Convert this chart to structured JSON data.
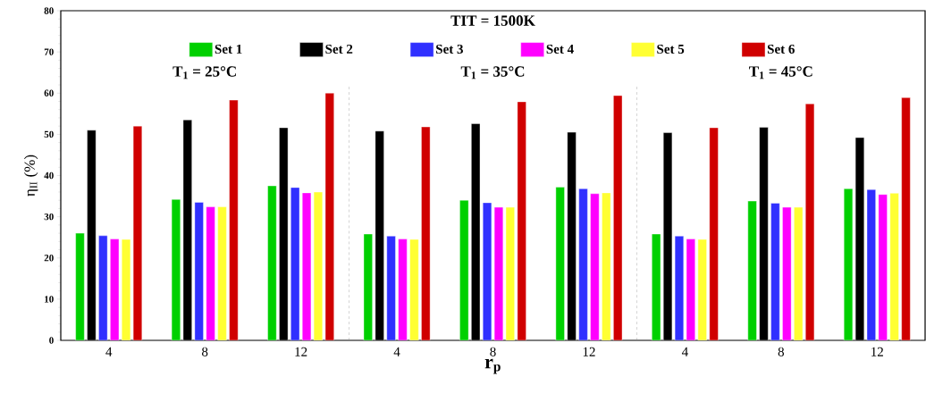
{
  "chart_data": {
    "type": "bar",
    "categories": [
      "4",
      "8",
      "12",
      "4",
      "8",
      "12",
      "4",
      "8",
      "12"
    ],
    "series": [
      {
        "name": "Set 1",
        "color": "#00d000",
        "values": [
          26,
          34.2,
          37.5,
          25.8,
          34,
          37.2,
          25.8,
          33.8,
          36.8
        ]
      },
      {
        "name": "Set 2",
        "color": "#000000",
        "values": [
          51,
          53.5,
          51.6,
          50.8,
          52.6,
          50.5,
          50.4,
          51.7,
          49.2
        ]
      },
      {
        "name": "Set 3",
        "color": "#3030ff",
        "values": [
          25.4,
          33.5,
          37.1,
          25.3,
          33.4,
          36.8,
          25.3,
          33.3,
          36.6
        ]
      },
      {
        "name": "Set 4",
        "color": "#ff00ff",
        "values": [
          24.6,
          32.4,
          35.8,
          24.6,
          32.3,
          35.6,
          24.6,
          32.3,
          35.4
        ]
      },
      {
        "name": "Set 5",
        "color": "#ffff33",
        "values": [
          24.5,
          32.4,
          36,
          24.5,
          32.3,
          35.8,
          24.5,
          32.3,
          35.7
        ]
      },
      {
        "name": "Set 6",
        "color": "#d00000",
        "values": [
          52,
          58.3,
          60,
          51.8,
          57.9,
          59.4,
          51.6,
          57.4,
          58.9
        ]
      }
    ],
    "xlabel": "r$_{p}$",
    "ylabel": "η$_{II}$ (%)",
    "ylim": [
      0,
      80
    ],
    "yticks": [
      0,
      10,
      20,
      30,
      40,
      50,
      60,
      70,
      80
    ],
    "annotations": [
      "TIT = 1500K",
      "T$_{1}$ = 25°C",
      "T$_{1}$ = 35°C",
      "T$_{1}$ = 45°C"
    ],
    "legend": "top",
    "grid": false
  }
}
